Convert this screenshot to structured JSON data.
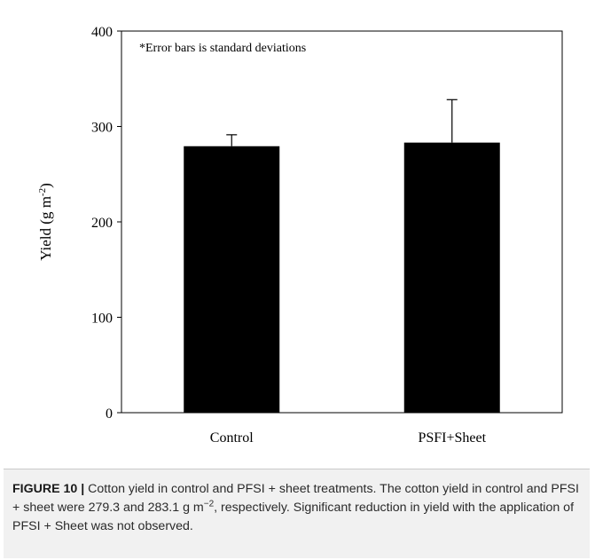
{
  "chart_data": {
    "type": "bar",
    "categories": [
      "Control",
      "PSFI+Sheet"
    ],
    "values": [
      279.3,
      283.1
    ],
    "error": [
      12,
      45
    ],
    "ylim": [
      0,
      400
    ],
    "yticks": [
      0,
      100,
      200,
      300,
      400
    ],
    "ylabel_main": "Yield (g m",
    "ylabel_sup": "-2",
    "ylabel_close": ")",
    "annotation": "*Error bars is standard deviations",
    "bar_color": "#000000"
  },
  "caption": {
    "label": "FIGURE 10 |",
    "text_1": " Cotton yield in control and PFSI + sheet treatments. The cotton yield in control and PFSI + sheet were 279.3 and 283.1 g m",
    "sup": "−2",
    "text_2": ", respectively. Significant reduction in yield with the application of PFSI + Sheet was not observed."
  }
}
